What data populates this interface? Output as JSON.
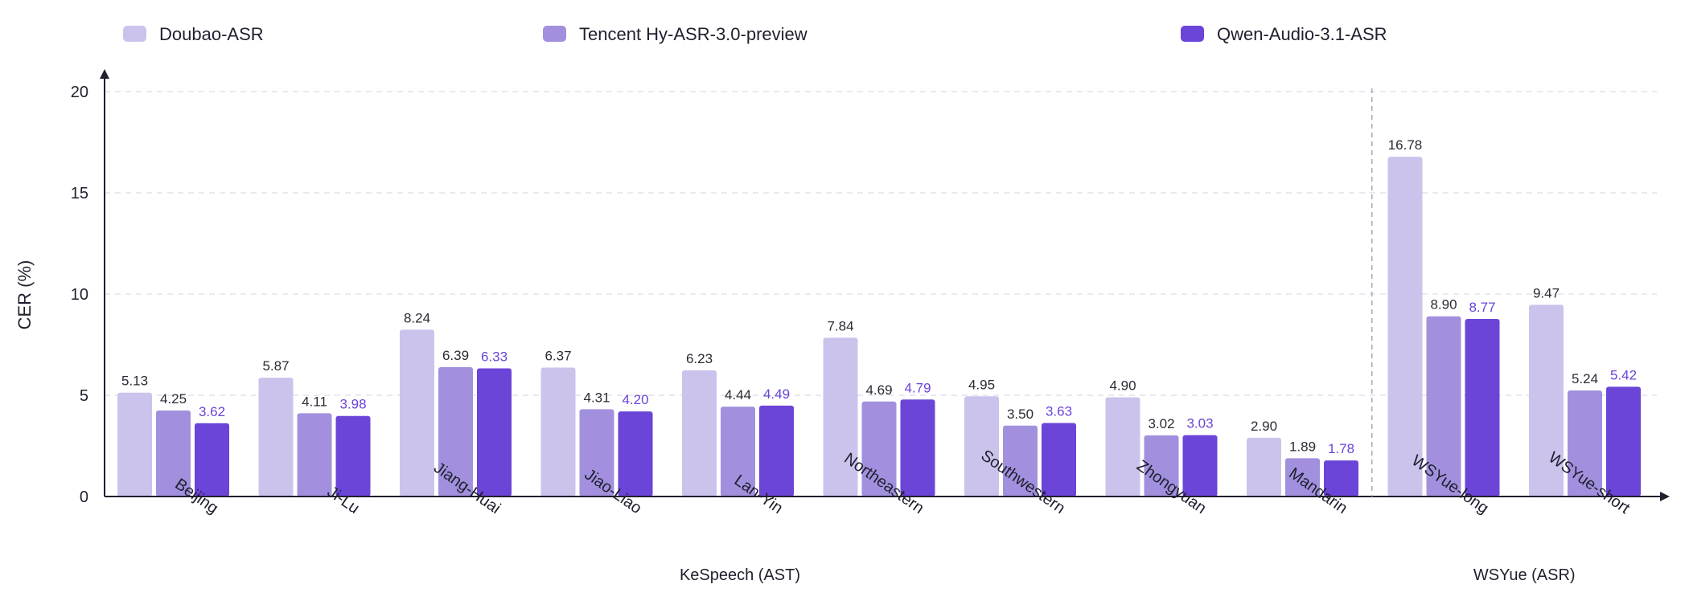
{
  "chart_data": {
    "type": "bar",
    "ylabel": "CER (%)",
    "ylim": [
      0,
      20
    ],
    "yticks": [
      0,
      5,
      10,
      15,
      20
    ],
    "grid": true,
    "legend_position": "top",
    "categories": [
      "Beijing",
      "Ji-Lu",
      "Jiang-Huai",
      "Jiao-Liao",
      "Lan-Yin",
      "Northeastern",
      "Southwestern",
      "Zhongyuan",
      "Mandarin",
      "WSYue-long",
      "WSYue-short"
    ],
    "groups": [
      {
        "label": "KeSpeech (AST)",
        "categories": [
          "Beijing",
          "Ji-Lu",
          "Jiang-Huai",
          "Jiao-Liao",
          "Lan-Yin",
          "Northeastern",
          "Southwestern",
          "Zhongyuan",
          "Mandarin"
        ]
      },
      {
        "label": "WSYue (ASR)",
        "categories": [
          "WSYue-long",
          "WSYue-short"
        ]
      }
    ],
    "series": [
      {
        "name": "Doubao-ASR",
        "color": "#cbc3ec",
        "label_color": "#2a2a35",
        "values": [
          5.13,
          5.87,
          8.24,
          6.37,
          6.23,
          7.84,
          4.95,
          4.9,
          2.9,
          16.78,
          9.47
        ],
        "labels": [
          "5.13",
          "5.87",
          "8.24",
          "6.37",
          "6.23",
          "7.84",
          "4.95",
          "4.90",
          "2.90",
          "16.78",
          "9.47"
        ]
      },
      {
        "name": "Tencent Hy-ASR-3.0-preview",
        "color": "#a290de",
        "label_color": "#2a2a35",
        "values": [
          4.25,
          4.11,
          6.39,
          4.31,
          4.44,
          4.69,
          3.5,
          3.02,
          1.89,
          8.9,
          5.24
        ],
        "labels": [
          "4.25",
          "4.11",
          "6.39",
          "4.31",
          "4.44",
          "4.69",
          "3.50",
          "3.02",
          "1.89",
          "8.90",
          "5.24"
        ]
      },
      {
        "name": "Qwen-Audio-3.1-ASR",
        "color": "#6b44d8",
        "label_color": "#6b44d8",
        "values": [
          3.62,
          3.98,
          6.33,
          4.2,
          4.49,
          4.79,
          3.63,
          3.03,
          1.78,
          8.77,
          5.42
        ],
        "labels": [
          "3.62",
          "3.98",
          "6.33",
          "4.20",
          "4.49",
          "4.79",
          "3.63",
          "3.03",
          "1.78",
          "8.77",
          "5.42"
        ]
      }
    ]
  }
}
